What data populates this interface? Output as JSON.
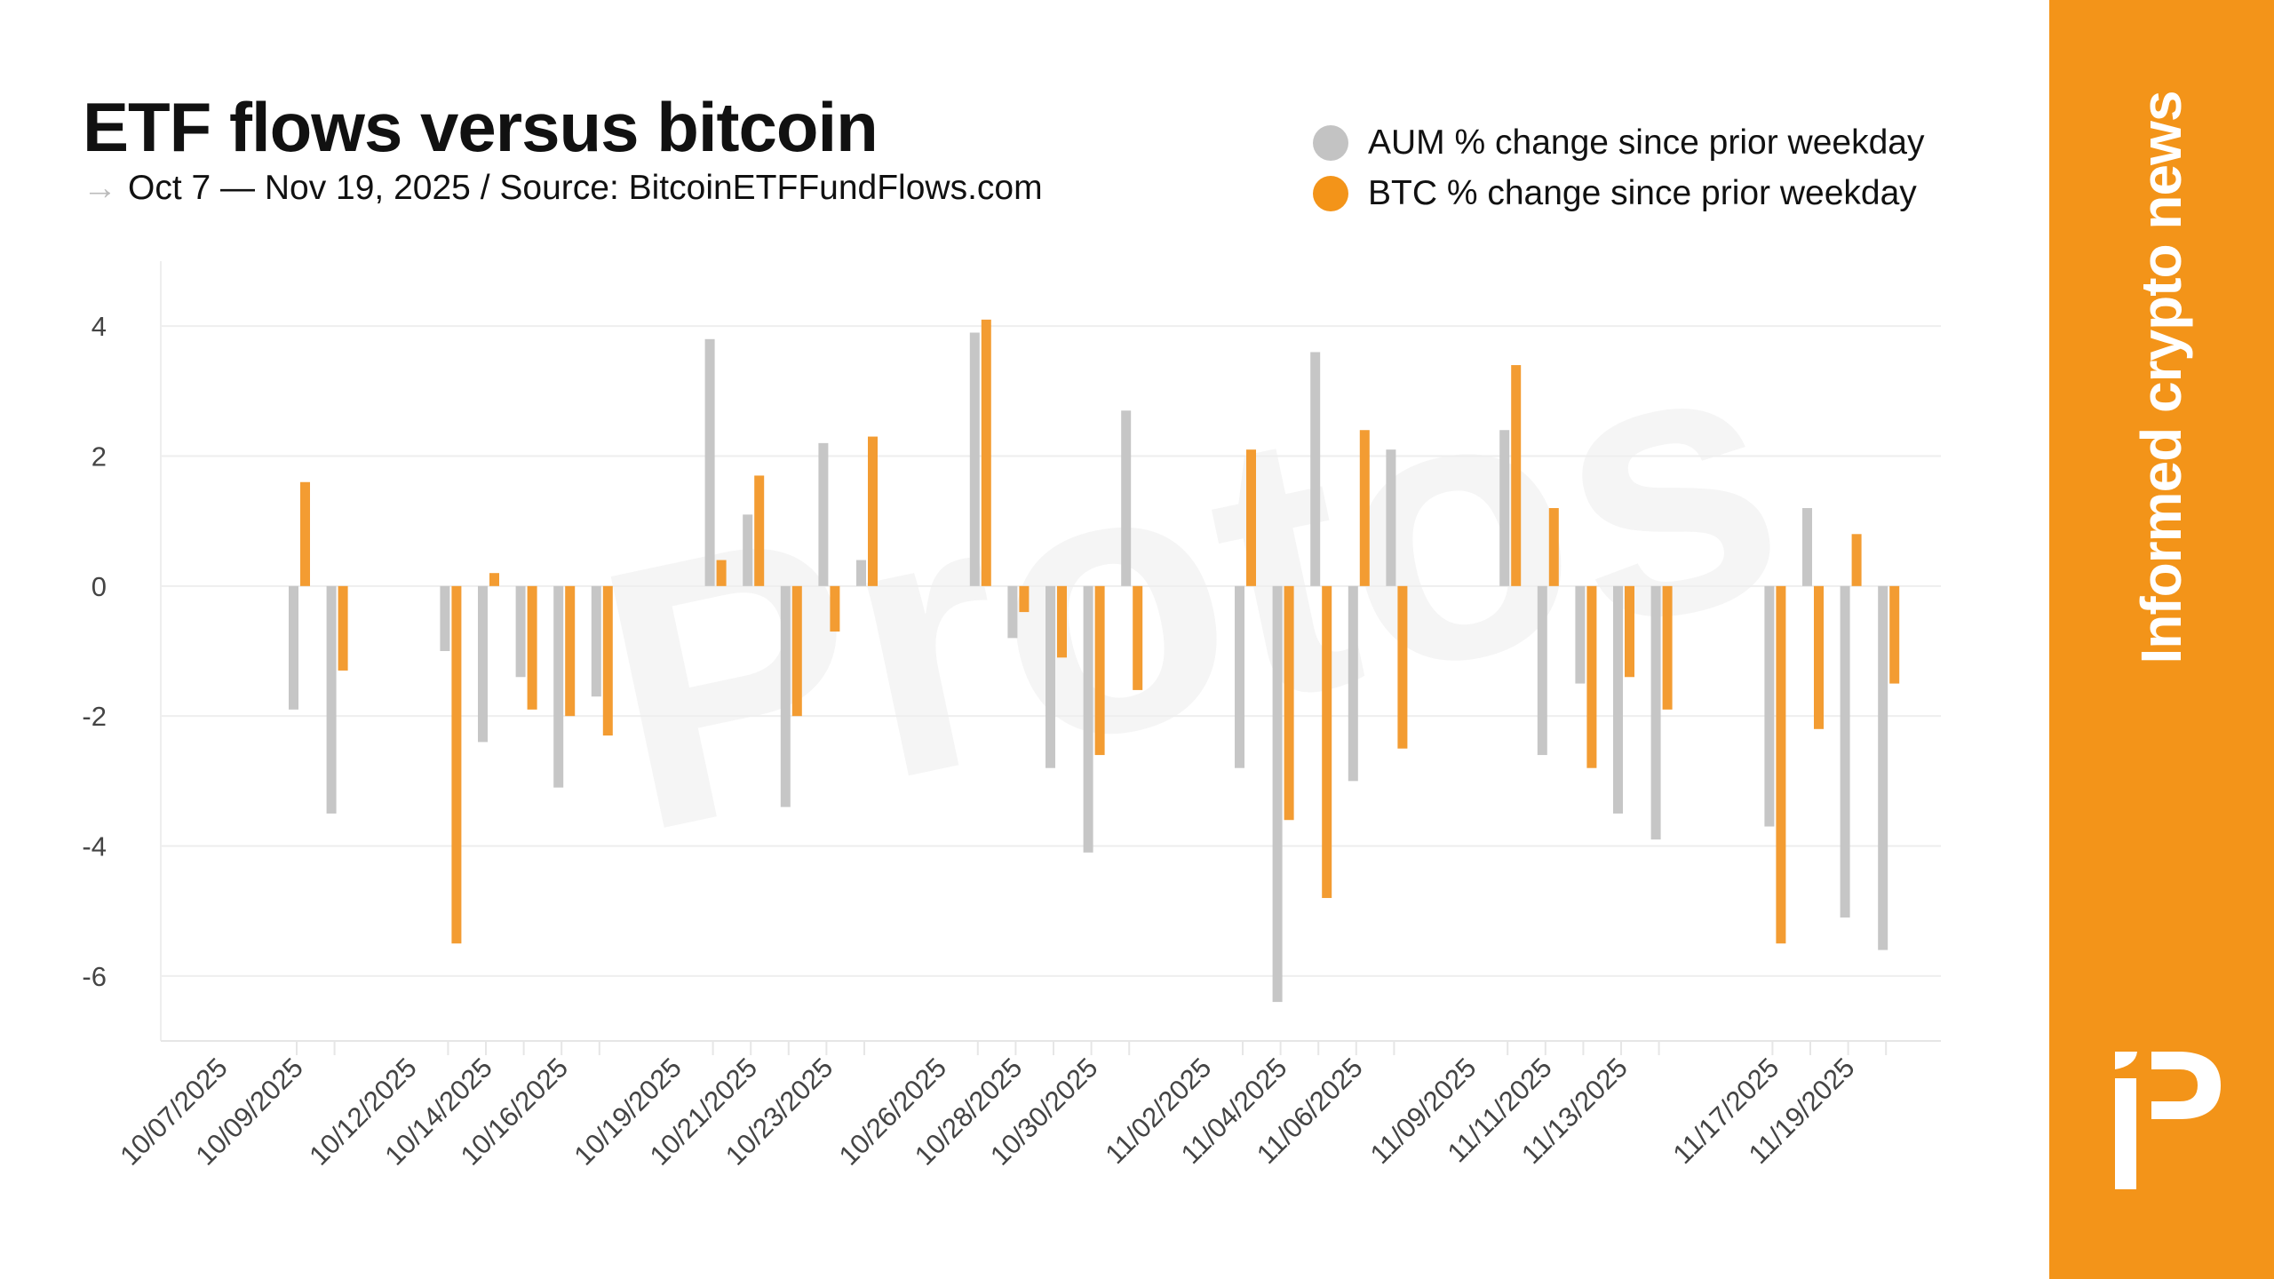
{
  "header": {
    "title": "ETF flows versus bitcoin",
    "subtitle_arrow": "→",
    "subtitle": "Oct 7 — Nov 19, 2025 / Source: BitcoinETFFundFlows.com"
  },
  "brand": {
    "tagline": "Informed crypto news",
    "watermark": "Protos",
    "panel_color": "#F39419"
  },
  "chart_data": {
    "type": "bar",
    "title": "ETF flows versus bitcoin",
    "xlabel": "",
    "ylabel": "",
    "ylim": [
      -7,
      5
    ],
    "yticks": [
      4,
      2,
      0,
      -2,
      -4,
      -6
    ],
    "grid": true,
    "legend_placement": "top-right",
    "xtick_labels": [
      "10/07/2025",
      "10/09/2025",
      "10/12/2025",
      "10/14/2025",
      "10/16/2025",
      "10/19/2025",
      "10/21/2025",
      "10/23/2025",
      "10/26/2025",
      "10/28/2025",
      "10/30/2025",
      "11/02/2025",
      "11/04/2025",
      "11/06/2025",
      "11/09/2025",
      "11/11/2025",
      "11/13/2025",
      "11/17/2025",
      "11/19/2025"
    ],
    "x": [
      "2025-10-09",
      "2025-10-10",
      "2025-10-13",
      "2025-10-14",
      "2025-10-15",
      "2025-10-16",
      "2025-10-17",
      "2025-10-20",
      "2025-10-21",
      "2025-10-22",
      "2025-10-23",
      "2025-10-24",
      "2025-10-27",
      "2025-10-28",
      "2025-10-29",
      "2025-10-30",
      "2025-10-31",
      "2025-11-03",
      "2025-11-04",
      "2025-11-05",
      "2025-11-06",
      "2025-11-07",
      "2025-11-10",
      "2025-11-11",
      "2025-11-12",
      "2025-11-13",
      "2025-11-14",
      "2025-11-17",
      "2025-11-18",
      "2025-11-19",
      "2025-11-20"
    ],
    "series": [
      {
        "name": "AUM % change since prior weekday",
        "color": "#C6C6C6",
        "values": [
          -1.9,
          -3.5,
          -1.0,
          -2.4,
          -1.4,
          -3.1,
          -1.7,
          3.8,
          1.1,
          -3.4,
          2.2,
          0.4,
          3.9,
          -0.8,
          -2.8,
          -4.1,
          2.7,
          -2.8,
          -6.4,
          3.6,
          -3.0,
          2.1,
          2.4,
          -2.6,
          -1.5,
          -3.5,
          -3.9,
          -3.7,
          1.2,
          -5.1,
          -5.6
        ]
      },
      {
        "name": "BTC % change since prior weekday",
        "color": "#F39C32",
        "values": [
          1.6,
          -1.3,
          -5.5,
          0.2,
          -1.9,
          -2.0,
          -2.3,
          0.4,
          1.7,
          -2.0,
          -0.7,
          2.3,
          4.1,
          -0.4,
          -1.1,
          -2.6,
          -1.6,
          2.1,
          -3.6,
          -4.8,
          2.4,
          -2.5,
          3.4,
          1.2,
          -2.8,
          -1.4,
          -1.9,
          -5.5,
          -2.2,
          0.8,
          -1.5
        ]
      }
    ]
  }
}
